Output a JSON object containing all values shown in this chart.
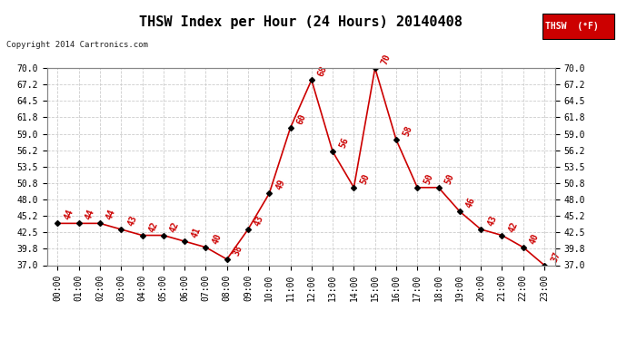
{
  "title": "THSW Index per Hour (24 Hours) 20140408",
  "copyright": "Copyright 2014 Cartronics.com",
  "legend_label": "THSW  (°F)",
  "background_color": "#ffffff",
  "line_color": "#cc0000",
  "marker_color": "#000000",
  "hours": [
    0,
    1,
    2,
    3,
    4,
    5,
    6,
    7,
    8,
    9,
    10,
    11,
    12,
    13,
    14,
    15,
    16,
    17,
    18,
    19,
    20,
    21,
    22,
    23
  ],
  "values": [
    44,
    44,
    44,
    43,
    42,
    42,
    41,
    40,
    38,
    43,
    49,
    60,
    68,
    56,
    50,
    70,
    58,
    50,
    50,
    46,
    43,
    42,
    40,
    37
  ],
  "ylim_min": 37.0,
  "ylim_max": 70.0,
  "yticks": [
    37.0,
    39.8,
    42.5,
    45.2,
    48.0,
    50.8,
    53.5,
    56.2,
    59.0,
    61.8,
    64.5,
    67.2,
    70.0
  ],
  "grid_color": "#cccccc",
  "title_fontsize": 11,
  "tick_fontsize": 7,
  "legend_bg": "#cc0000",
  "legend_text_color": "#ffffff"
}
